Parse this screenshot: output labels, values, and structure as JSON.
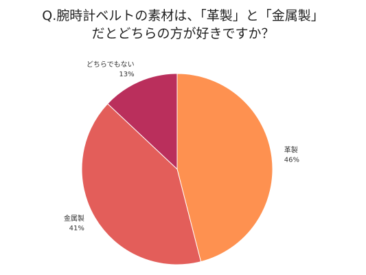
{
  "title": {
    "line1": "Q.腕時計ベルトの素材は、「革製」と「金属製」",
    "line2": "だとどちらの方が好きですか？"
  },
  "chart_data": {
    "type": "pie",
    "start_angle_deg": 0,
    "direction": "clockwise",
    "slices": [
      {
        "label": "革製",
        "value": 46,
        "value_label": "46%",
        "color": "#FE9150"
      },
      {
        "label": "金属製",
        "value": 41,
        "value_label": "41%",
        "color": "#E35E5A"
      },
      {
        "label": "どちらでもない",
        "value": 13,
        "value_label": "13%",
        "color": "#BA2F5C"
      }
    ]
  }
}
